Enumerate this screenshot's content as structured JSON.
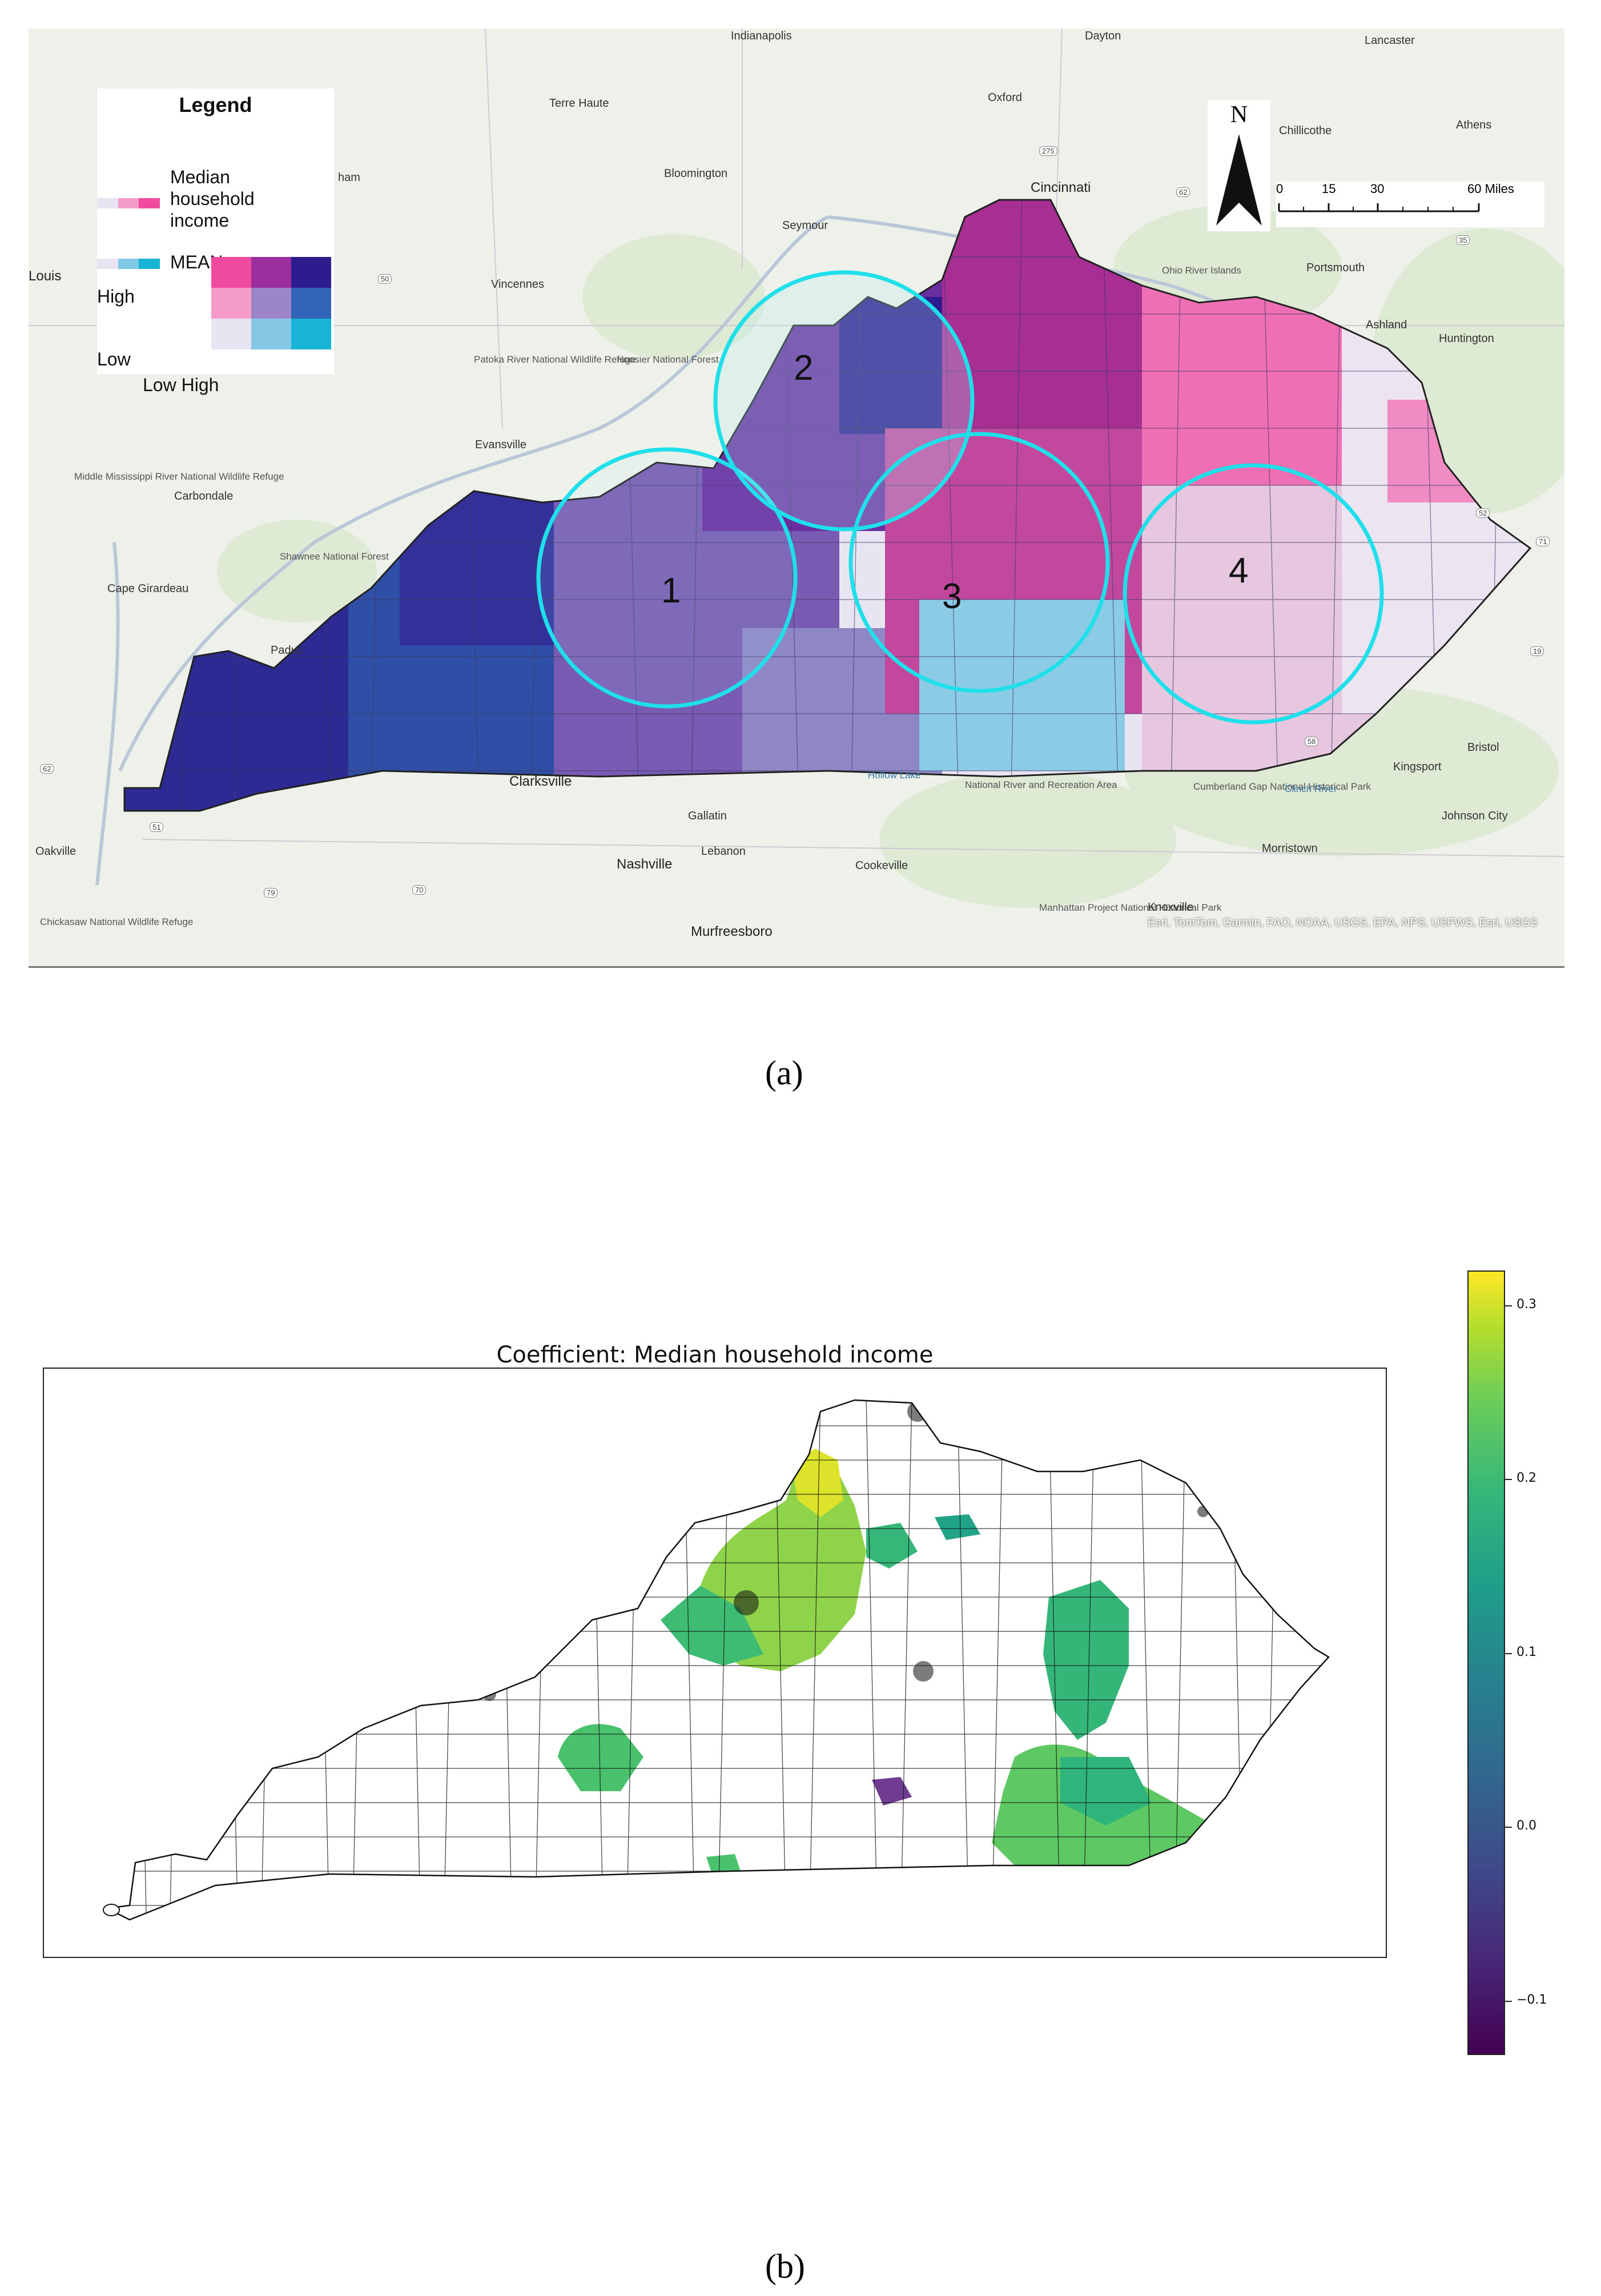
{
  "panel_a": {
    "caption": "(a)",
    "legend": {
      "title": "Legend",
      "income_label": "Median household income",
      "mean_label": "MEAN",
      "high_label": "High",
      "low_label": "Low",
      "axis_label": "Low High",
      "income_ramp": [
        "#e8e4f2",
        "#f59cc9",
        "#ef4a9e"
      ],
      "mean_ramp": [
        "#e8e4f2",
        "#7fc8e6",
        "#18b4d6"
      ],
      "bivariate_grid": [
        [
          "#ef4a9e",
          "#9b2fa0",
          "#2d1c8e"
        ],
        [
          "#f59cc9",
          "#9c85c9",
          "#2f64b6"
        ],
        [
          "#e8e4f2",
          "#85c8e6",
          "#18b4d6"
        ]
      ]
    },
    "north_label": "N",
    "scale_bar": {
      "ticks": [
        "0",
        "15",
        "30",
        "60 Miles"
      ]
    },
    "clusters": [
      "1",
      "2",
      "3",
      "4"
    ],
    "places": {
      "indianapolis": "Indianapolis",
      "dayton": "Dayton",
      "lancaster": "Lancaster",
      "terre_haute": "Terre Haute",
      "oxford": "Oxford",
      "chillicothe": "Chillicothe",
      "athens": "Athens",
      "bloomington": "Bloomington",
      "cincinnati": "Cincinnati",
      "seymour": "Seymour",
      "ham": "ham",
      "louis": "Louis",
      "vincennes": "Vincennes",
      "portsmouth": "Portsmouth",
      "ohio_river_islands": "Ohio River Islands",
      "ashland": "Ashland",
      "huntington": "Huntington",
      "patoka": "Patoka River National Wildlife Refuge",
      "hoosier": "Hoosier National Forest",
      "evansville": "Evansville",
      "middle_mississippi": "Middle Mississippi River National Wildlife Refuge",
      "carbondale": "Carbondale",
      "shawnee": "Shawnee National Forest",
      "cape_girardeau": "Cape Girardeau",
      "paduc": "Paduc",
      "clarksville": "Clarksville",
      "hollow_lake": "Hollow Lake",
      "big_south_fork": "National River and Recreation Area",
      "bristol": "Bristol",
      "kingsport": "Kingsport",
      "gallatin": "Gallatin",
      "johnson_city": "Johnson City",
      "oakville": "Oakville",
      "lebanon": "Lebanon",
      "morristown": "Morristown",
      "nashville": "Nashville",
      "cookeville": "Cookeville",
      "chickasaw": "Chickasaw National Wildlife Refuge",
      "manhattan": "Manhattan Project National Historical Park",
      "knoxville": "Knoxville",
      "murfreesboro": "Murfreesboro",
      "cumberland_gap": "Cumberland Gap National Historical Park",
      "clinch_river": "Clinch River"
    },
    "road_shields": [
      "275",
      "50",
      "62",
      "51",
      "79",
      "70",
      "35",
      "77",
      "52",
      "58",
      "19",
      "71",
      "62"
    ],
    "attribution": "Esri, TomTom, Garmin, FAO, NOAA, USGS, EPA, NPS, USFWS, Esri, USGS"
  },
  "panel_b": {
    "caption": "(b)",
    "title": "Coefficient: Median household income",
    "colorbar_ticks": [
      {
        "label": "0.3",
        "value": 0.3
      },
      {
        "label": "0.2",
        "value": 0.2
      },
      {
        "label": "0.1",
        "value": 0.1
      },
      {
        "label": "0.0",
        "value": 0.0
      },
      {
        "label": "−0.1",
        "value": -0.1
      }
    ],
    "colorbar_range": [
      -0.13,
      0.32
    ],
    "colormap": "viridis"
  }
}
